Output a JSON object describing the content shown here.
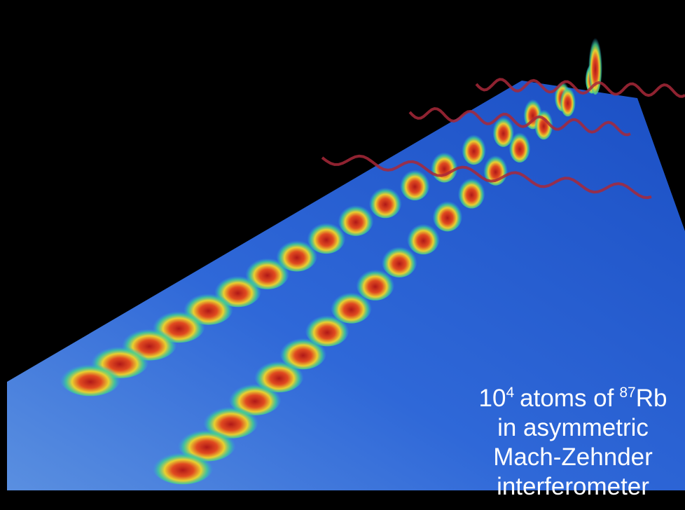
{
  "caption": {
    "line1": {
      "base": "10",
      "exp": "4",
      "mid": "atoms of",
      "iso": "87",
      "element": "Rb"
    },
    "lines": [
      "in asymmetric",
      "Mach-Zehnder",
      "interferometer"
    ]
  }
}
